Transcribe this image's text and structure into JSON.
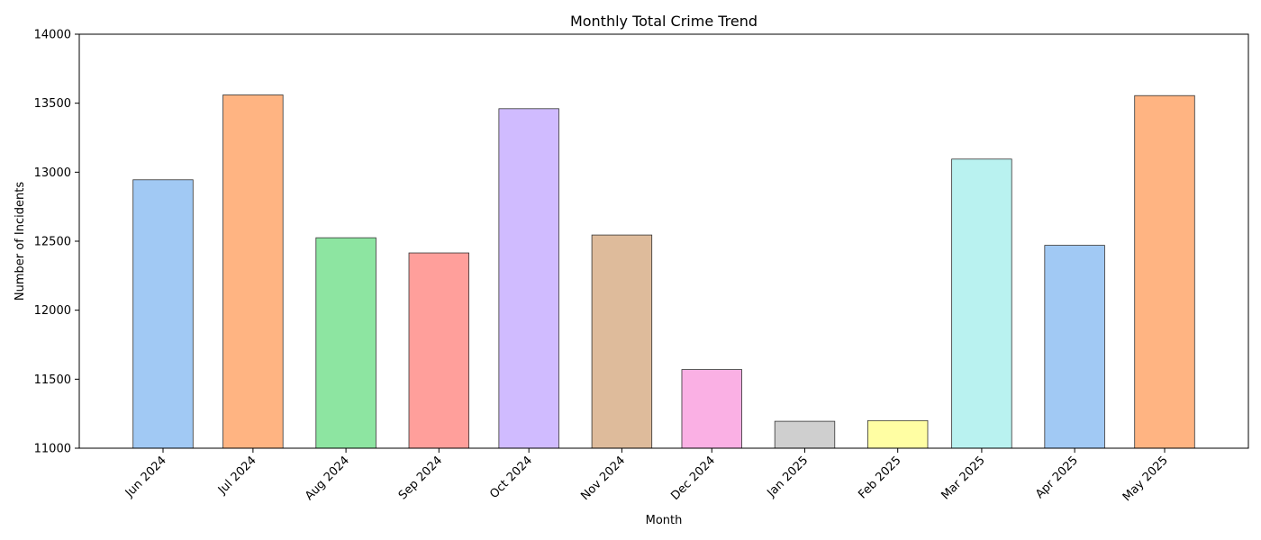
{
  "chart_data": {
    "type": "bar",
    "title": "Monthly Total Crime Trend",
    "xlabel": "Month",
    "ylabel": "Number of Incidents",
    "ylim": [
      11000,
      14000
    ],
    "yticks": [
      11000,
      11500,
      12000,
      12500,
      13000,
      13500,
      14000
    ],
    "grid": false,
    "categories": [
      "Jun 2024",
      "Jul 2024",
      "Aug 2024",
      "Sep 2024",
      "Oct 2024",
      "Nov 2024",
      "Dec 2024",
      "Jan 2025",
      "Feb 2025",
      "Mar 2025",
      "Apr 2025",
      "May 2025"
    ],
    "x": [
      "2024-06-01",
      "2024-07-01",
      "2024-08-01",
      "2024-09-01",
      "2024-10-01",
      "2024-11-01",
      "2024-12-01",
      "2025-01-01",
      "2025-02-01",
      "2025-03-01",
      "2025-04-01",
      "2025-05-01"
    ],
    "values": [
      12945,
      13560,
      12525,
      12415,
      13460,
      12545,
      11570,
      11195,
      11200,
      13095,
      12470,
      13555
    ],
    "colors": [
      "#a1c9f4",
      "#ffb482",
      "#8de5a1",
      "#ff9f9b",
      "#d0bbff",
      "#debb9b",
      "#fab0e4",
      "#cfcfcf",
      "#fffea3",
      "#b9f2f0",
      "#a1c9f4",
      "#ffb482"
    ],
    "edge_color": "#333333"
  }
}
